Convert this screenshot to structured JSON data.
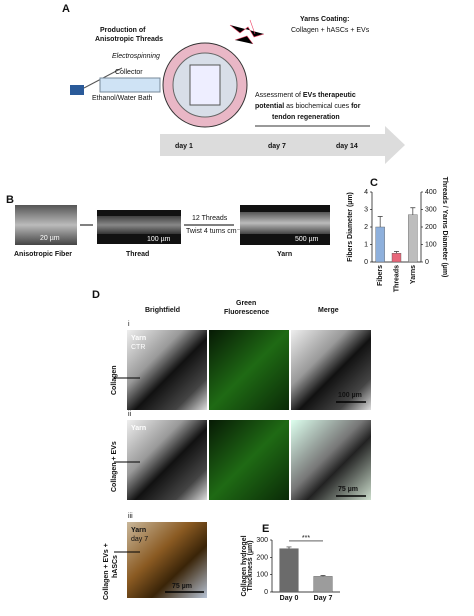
{
  "panel_a": {
    "label": "A",
    "production": [
      "Production of",
      "Anisotropic Threads"
    ],
    "method": "Electrospinning",
    "collector": "Collector",
    "bath": "Ethanol/Water Bath",
    "coating_title": "Yarns Coating:",
    "coating_text": "Collagen + hASCs + EVs",
    "assessment": [
      [
        "Assessment of ",
        "EVs therapeutic"
      ],
      [
        "potential",
        " as biochemical cues ",
        "for"
      ],
      [
        "tendon regeneration"
      ]
    ],
    "days": [
      "day 1",
      "day 7",
      "day 14"
    ]
  },
  "panel_b": {
    "label": "B",
    "images": [
      {
        "caption": "Anisotropic Fiber",
        "scale": "20 µm"
      },
      {
        "caption": "Thread",
        "scale": "100 µm"
      },
      {
        "caption": "Yarn",
        "scale": "500 µm"
      }
    ],
    "step": [
      "12 Threads",
      "Twist 4 turns cm⁻¹"
    ]
  },
  "panel_c": {
    "type": "bar",
    "label": "C",
    "categories": [
      "Fibers",
      "Threads",
      "Yarns"
    ],
    "colors": [
      "#8eb0dc",
      "#e8687b",
      "#bdbdbd"
    ],
    "series": [
      {
        "values": [
          2.0,
          null,
          null
        ],
        "errors": [
          0.6,
          null,
          null
        ]
      },
      {
        "axis": "y2",
        "values": [
          null,
          50,
          270
        ],
        "errors": [
          null,
          10,
          40
        ]
      }
    ],
    "ylabel": "Fibers Diameter (µm)",
    "y2label": "Threads / Yarns Diameter (µm)",
    "ylim": [
      0,
      4
    ],
    "yticks": [
      0,
      1,
      2,
      3,
      4
    ],
    "y2lim": [
      0,
      400
    ],
    "y2ticks": [
      0,
      100,
      200,
      300,
      400
    ]
  },
  "panel_d": {
    "label": "D",
    "columns": [
      "Brightfield",
      "Green",
      "Fluorescence",
      "Merge"
    ],
    "rows": [
      {
        "numeral": "i",
        "label": "Collagen",
        "tag": [
          "Yarn",
          "CTR"
        ],
        "scale": "100 µm"
      },
      {
        "numeral": "ii",
        "label": "Collagen + EVs",
        "tag": [
          "Yarn"
        ],
        "scale": "75 µm"
      },
      {
        "numeral": "iii",
        "label": [
          "Collagen + EVs +",
          "hASCs"
        ],
        "tag": [
          "Yarn",
          "day 7"
        ],
        "scale": "75 µm"
      }
    ]
  },
  "panel_e": {
    "type": "bar",
    "label": "E",
    "categories": [
      "Day 0",
      "Day 7"
    ],
    "values": [
      250,
      90
    ],
    "errors": [
      10,
      5
    ],
    "colors": [
      "#6b6b6b",
      "#9c9c9c"
    ],
    "ylabel": [
      "Collagen hydrogel",
      "Thickness (µm)"
    ],
    "ylim": [
      0,
      300
    ],
    "yticks": [
      0,
      100,
      200,
      300
    ],
    "annotation": "***"
  }
}
